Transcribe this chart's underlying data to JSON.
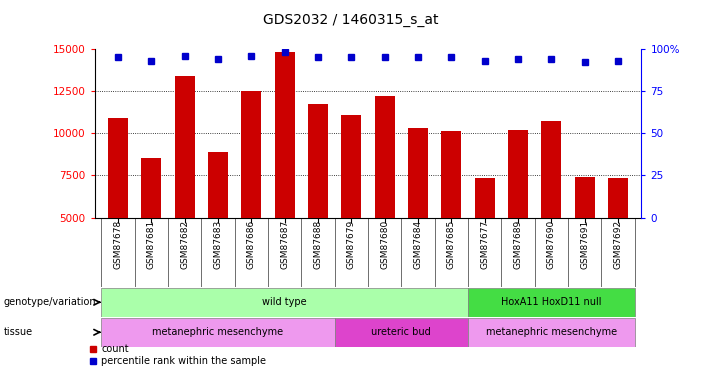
{
  "title": "GDS2032 / 1460315_s_at",
  "samples": [
    "GSM87678",
    "GSM87681",
    "GSM87682",
    "GSM87683",
    "GSM87686",
    "GSM87687",
    "GSM87688",
    "GSM87679",
    "GSM87680",
    "GSM87684",
    "GSM87685",
    "GSM87677",
    "GSM87689",
    "GSM87690",
    "GSM87691",
    "GSM87692"
  ],
  "counts": [
    10900,
    8550,
    13400,
    8900,
    12500,
    14800,
    11700,
    11100,
    12200,
    10300,
    10100,
    7350,
    10200,
    10700,
    7400,
    7350
  ],
  "percentile_ranks": [
    95,
    93,
    96,
    94,
    96,
    98,
    95,
    95,
    95,
    95,
    95,
    93,
    94,
    94,
    92,
    93
  ],
  "bar_color": "#cc0000",
  "dot_color": "#0000cc",
  "ylim_left": [
    5000,
    15000
  ],
  "ylim_right": [
    0,
    100
  ],
  "yticks_left": [
    5000,
    7500,
    10000,
    12500,
    15000
  ],
  "yticks_right": [
    0,
    25,
    50,
    75,
    100
  ],
  "genotype_groups": [
    {
      "label": "wild type",
      "start": 0,
      "end": 11,
      "color": "#aaffaa"
    },
    {
      "label": "HoxA11 HoxD11 null",
      "start": 11,
      "end": 16,
      "color": "#44dd44"
    }
  ],
  "tissue_groups": [
    {
      "label": "metanephric mesenchyme",
      "start": 0,
      "end": 7,
      "color": "#ee99ee"
    },
    {
      "label": "ureteric bud",
      "start": 7,
      "end": 11,
      "color": "#dd44cc"
    },
    {
      "label": "metanephric mesenchyme",
      "start": 11,
      "end": 16,
      "color": "#ee99ee"
    }
  ],
  "legend_items": [
    {
      "label": "count",
      "color": "#cc0000",
      "marker": "s"
    },
    {
      "label": "percentile rank within the sample",
      "color": "#0000cc",
      "marker": "s"
    }
  ],
  "background_color": "#ffffff"
}
